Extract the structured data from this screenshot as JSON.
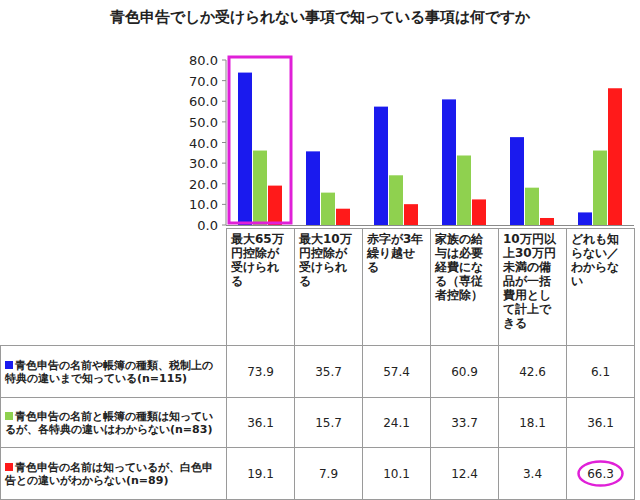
{
  "chart_data": {
    "type": "bar",
    "title": "青色申告でしか受けられない事項で知っている事項は何ですか",
    "categories": [
      "最大65万円控除が受けられる",
      "最大10万円控除が受けられる",
      "赤字が3年繰り越せる",
      "家族の給与は必要経費になる（専従者控除）",
      "10万円以上30万円未満の備品が一括費用として計上できる",
      "どれも知らない／わからない"
    ],
    "series": [
      {
        "name": "青色申告の名前や帳簿の種類、税制上の特典の違いまで知っている(n=115)",
        "color": "#1a1aee",
        "values": [
          73.9,
          35.7,
          57.4,
          60.9,
          42.6,
          6.1
        ]
      },
      {
        "name": "青色申告の名前と帳簿の種類は知っているが、各特典の違いはわからない(n=83)",
        "color": "#8fd14f",
        "values": [
          36.1,
          15.7,
          24.1,
          33.7,
          18.1,
          36.1
        ]
      },
      {
        "name": "青色申告の名前は知っているが、白色申告との違いがわからない(n=89)",
        "color": "#ff1a1a",
        "values": [
          19.1,
          7.9,
          10.1,
          12.4,
          3.4,
          66.3
        ]
      }
    ],
    "ylim": [
      0,
      80
    ],
    "yticks": [
      {
        "value": 0,
        "label": "0.0"
      },
      {
        "value": 10,
        "label": "10.0"
      },
      {
        "value": 20,
        "label": "20.0"
      },
      {
        "value": 30,
        "label": "30.0"
      },
      {
        "value": 40,
        "label": "40.0"
      },
      {
        "value": 50,
        "label": "50.0"
      },
      {
        "value": 60,
        "label": "60.0"
      },
      {
        "value": 70,
        "label": "70.0"
      },
      {
        "value": 80,
        "label": "80.0"
      }
    ],
    "grid": false
  }
}
